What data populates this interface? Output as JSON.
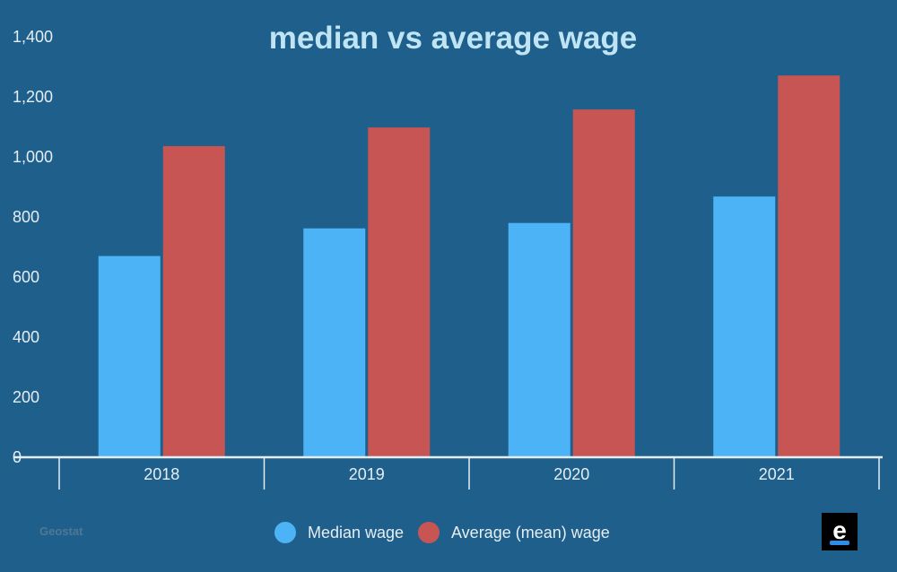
{
  "chart_data": {
    "type": "bar",
    "title": "median vs average wage",
    "xlabel": "",
    "ylabel": "",
    "categories": [
      "2018",
      "2019",
      "2020",
      "2021"
    ],
    "series": [
      {
        "name": "Median wage",
        "values": [
          670,
          762,
          780,
          868
        ],
        "color": "#4db3f7"
      },
      {
        "name": "Average (mean) wage",
        "values": [
          1036,
          1098,
          1158,
          1271
        ],
        "color": "#c75553"
      }
    ],
    "ylim": [
      0,
      1400
    ],
    "yticks": [
      {
        "value": 0,
        "label": "0"
      },
      {
        "value": 200,
        "label": "200"
      },
      {
        "value": 400,
        "label": "400"
      },
      {
        "value": 600,
        "label": "600"
      },
      {
        "value": 800,
        "label": "800"
      },
      {
        "value": 1000,
        "label": "1,000"
      },
      {
        "value": 1200,
        "label": "1,200"
      },
      {
        "value": 1400,
        "label": "1,400"
      }
    ],
    "grid": false,
    "legend": "bottom-center"
  },
  "source": "Geostat",
  "logo": {
    "letter": "e",
    "background": "#000000",
    "accent": "#2b8fe8"
  },
  "colors": {
    "background": "#1f5f8b",
    "axis": "#e6eef4",
    "title": "#bfe4f4"
  }
}
